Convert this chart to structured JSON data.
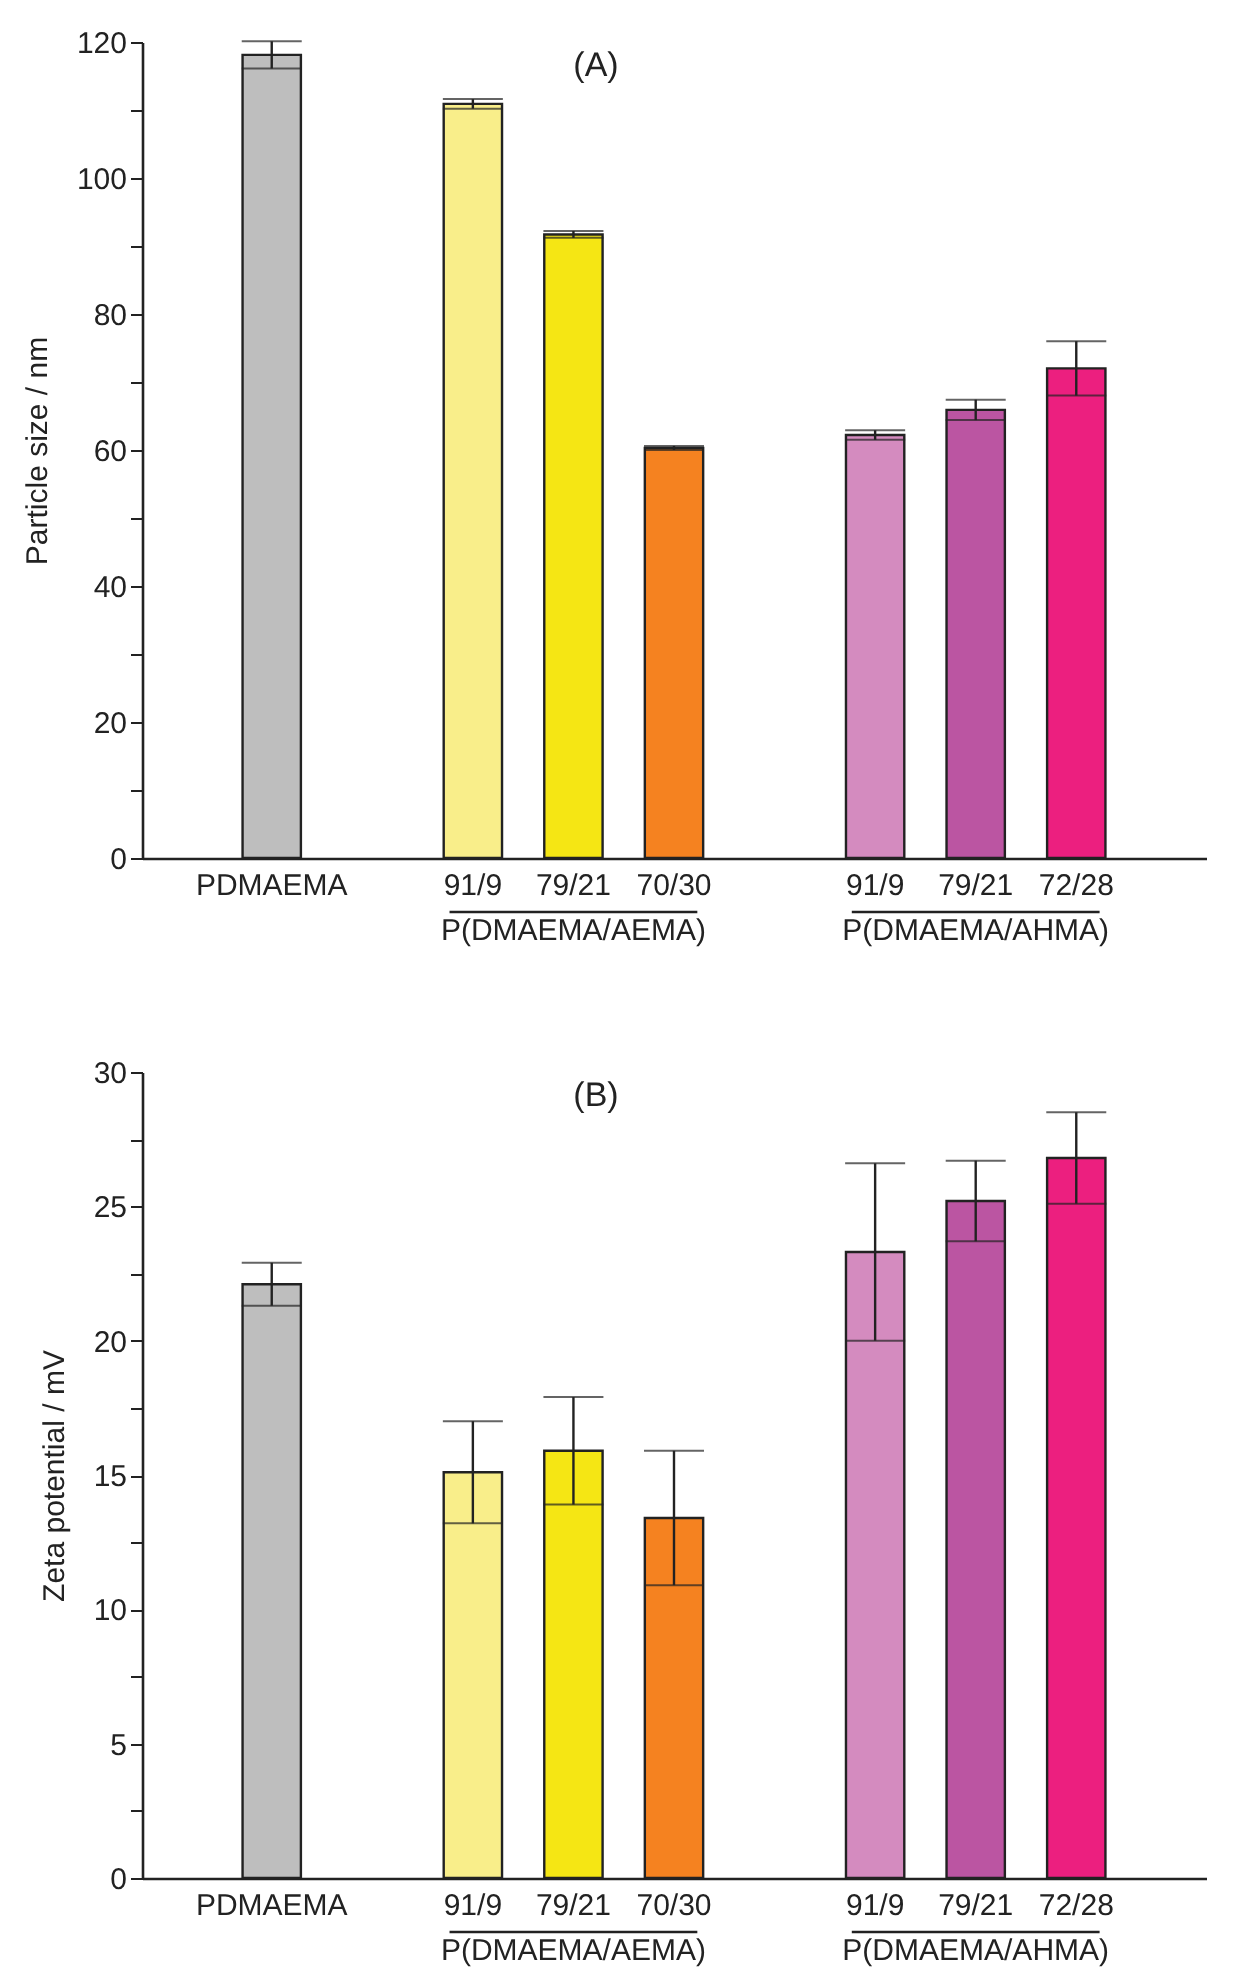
{
  "chart_data": [
    {
      "type": "bar",
      "title": "(A)",
      "ylabel": "Particle size / nm",
      "categories": [
        "PDMAEMA",
        null,
        "91/9",
        "79/21",
        "70/30",
        null,
        "91/9",
        "79/21",
        "72/28"
      ],
      "values": [
        118.1,
        null,
        110.9,
        91.7,
        60.3,
        null,
        62.2,
        65.9,
        72.0
      ],
      "errors": [
        2.0,
        null,
        0.7,
        0.5,
        0.3,
        null,
        0.7,
        1.5,
        4.0
      ],
      "colors": [
        "#bebebe",
        null,
        "#f9ee8a",
        "#f5e614",
        "#f58220",
        null,
        "#d48bbf",
        "#bb55a2",
        "#ec1f7f"
      ],
      "ylim": [
        0,
        120
      ],
      "yticks": [
        0,
        {
          "value": 10,
          "label": null
        },
        20,
        {
          "value": 30,
          "label": null
        },
        40,
        {
          "value": 50,
          "label": null
        },
        60,
        {
          "value": 70,
          "label": null
        },
        80,
        {
          "value": 90,
          "label": null
        },
        100,
        {
          "value": 110,
          "label": null
        },
        120
      ],
      "annotations": [
        "P(DMAEMA/AEMA)",
        "P(DMAEMA/AHMA)"
      ]
    },
    {
      "type": "bar",
      "title": "(B)",
      "ylabel": "Zeta potential / mV",
      "categories": [
        "PDMAEMA",
        null,
        "91/9",
        "79/21",
        "70/30",
        null,
        "91/9",
        "79/21",
        "72/28"
      ],
      "values": [
        22.1,
        null,
        15.1,
        15.9,
        13.4,
        null,
        23.3,
        25.2,
        26.8
      ],
      "errors": [
        0.8,
        null,
        1.9,
        2.0,
        2.5,
        null,
        3.3,
        1.5,
        1.7
      ],
      "colors": [
        "#bebebe",
        null,
        "#f9ee8a",
        "#f5e614",
        "#f58220",
        null,
        "#d48bbf",
        "#bb55a2",
        "#ec1f7f"
      ],
      "ylim": [
        0,
        30
      ],
      "yticks": [
        0,
        {
          "value": 2.5,
          "label": null
        },
        5,
        {
          "value": 7.5,
          "label": null
        },
        10,
        {
          "value": 12.5,
          "label": null
        },
        15,
        {
          "value": 17.5,
          "label": null
        },
        20,
        {
          "value": 22.5,
          "label": null
        },
        25,
        {
          "value": 27.5,
          "label": null
        },
        30
      ],
      "annotations": [
        "P(DMAEMA/AEMA)",
        "P(DMAEMA/AHMA)"
      ]
    }
  ]
}
